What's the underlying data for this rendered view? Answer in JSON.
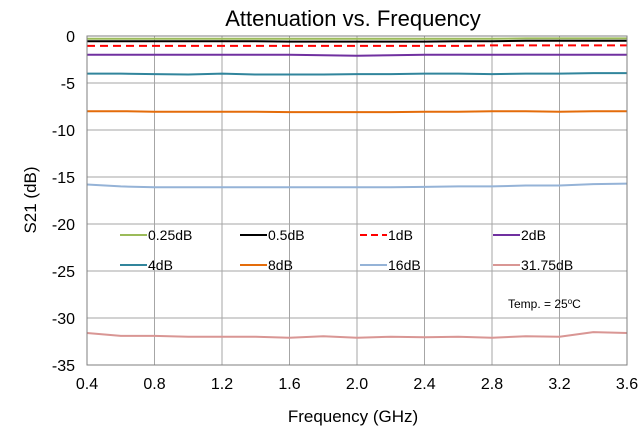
{
  "chart_data": {
    "type": "line",
    "title": "Attenuation vs. Frequency",
    "xlabel": "Frequency (GHz)",
    "ylabel": "S21 (dB)",
    "xlim": [
      0.4,
      3.6
    ],
    "ylim": [
      -35,
      0
    ],
    "xticks": [
      "0.4",
      "0.8",
      "1.2",
      "1.6",
      "2.0",
      "2.4",
      "2.8",
      "3.2",
      "3.6"
    ],
    "yticks": [
      "0",
      "-5",
      "-10",
      "-15",
      "-20",
      "-25",
      "-30",
      "-35"
    ],
    "grid": true,
    "legend_position": "inside-lower-middle",
    "annotation": {
      "prefix": "Temp. = 25",
      "sup": "o",
      "suffix": "C"
    },
    "x": [
      0.4,
      0.6,
      0.8,
      1.0,
      1.2,
      1.4,
      1.6,
      1.8,
      2.0,
      2.2,
      2.4,
      2.6,
      2.8,
      3.0,
      3.2,
      3.4,
      3.6
    ],
    "series": [
      {
        "name": "0.25dB",
        "color": "#9bbb59",
        "dash": "solid",
        "values": [
          -0.3,
          -0.3,
          -0.3,
          -0.3,
          -0.3,
          -0.3,
          -0.3,
          -0.3,
          -0.3,
          -0.3,
          -0.3,
          -0.3,
          -0.3,
          -0.25,
          -0.25,
          -0.25,
          -0.25
        ]
      },
      {
        "name": "0.5dB",
        "color": "#000000",
        "dash": "solid",
        "values": [
          -0.55,
          -0.55,
          -0.55,
          -0.55,
          -0.55,
          -0.55,
          -0.6,
          -0.6,
          -0.6,
          -0.6,
          -0.6,
          -0.55,
          -0.55,
          -0.5,
          -0.5,
          -0.5,
          -0.5
        ]
      },
      {
        "name": "1dB",
        "color": "#ff0000",
        "dash": "dashed",
        "values": [
          -1.05,
          -1.05,
          -1.05,
          -1.05,
          -1.05,
          -1.05,
          -1.05,
          -1.05,
          -1.05,
          -1.05,
          -1.05,
          -1.05,
          -1.0,
          -1.0,
          -1.0,
          -1.0,
          -1.0
        ]
      },
      {
        "name": "2dB",
        "color": "#7030a0",
        "dash": "solid",
        "values": [
          -2.0,
          -2.0,
          -2.0,
          -2.0,
          -2.0,
          -2.0,
          -2.0,
          -2.05,
          -2.1,
          -2.05,
          -2.0,
          -2.0,
          -2.0,
          -2.0,
          -2.0,
          -2.0,
          -2.0
        ]
      },
      {
        "name": "4dB",
        "color": "#31859c",
        "dash": "solid",
        "values": [
          -4.0,
          -4.0,
          -4.05,
          -4.1,
          -4.0,
          -4.1,
          -4.1,
          -4.1,
          -4.05,
          -4.05,
          -4.0,
          -4.0,
          -4.05,
          -4.0,
          -4.0,
          -3.95,
          -3.95
        ]
      },
      {
        "name": "8dB",
        "color": "#e46c0a",
        "dash": "solid",
        "values": [
          -8.0,
          -8.0,
          -8.05,
          -8.05,
          -8.05,
          -8.05,
          -8.1,
          -8.1,
          -8.1,
          -8.1,
          -8.05,
          -8.05,
          -8.0,
          -8.0,
          -8.05,
          -8.0,
          -8.0
        ]
      },
      {
        "name": "16dB",
        "color": "#95b3d7",
        "dash": "solid",
        "values": [
          -15.8,
          -16.0,
          -16.1,
          -16.1,
          -16.1,
          -16.1,
          -16.1,
          -16.1,
          -16.1,
          -16.1,
          -16.05,
          -16.0,
          -16.0,
          -15.9,
          -15.9,
          -15.75,
          -15.7
        ]
      },
      {
        "name": "31.75dB",
        "color": "#d99694",
        "dash": "solid",
        "values": [
          -31.6,
          -31.9,
          -31.9,
          -32.0,
          -32.0,
          -32.0,
          -32.1,
          -31.95,
          -32.1,
          -32.0,
          -32.05,
          -32.0,
          -32.1,
          -31.95,
          -32.0,
          -31.5,
          -31.6
        ]
      }
    ]
  }
}
